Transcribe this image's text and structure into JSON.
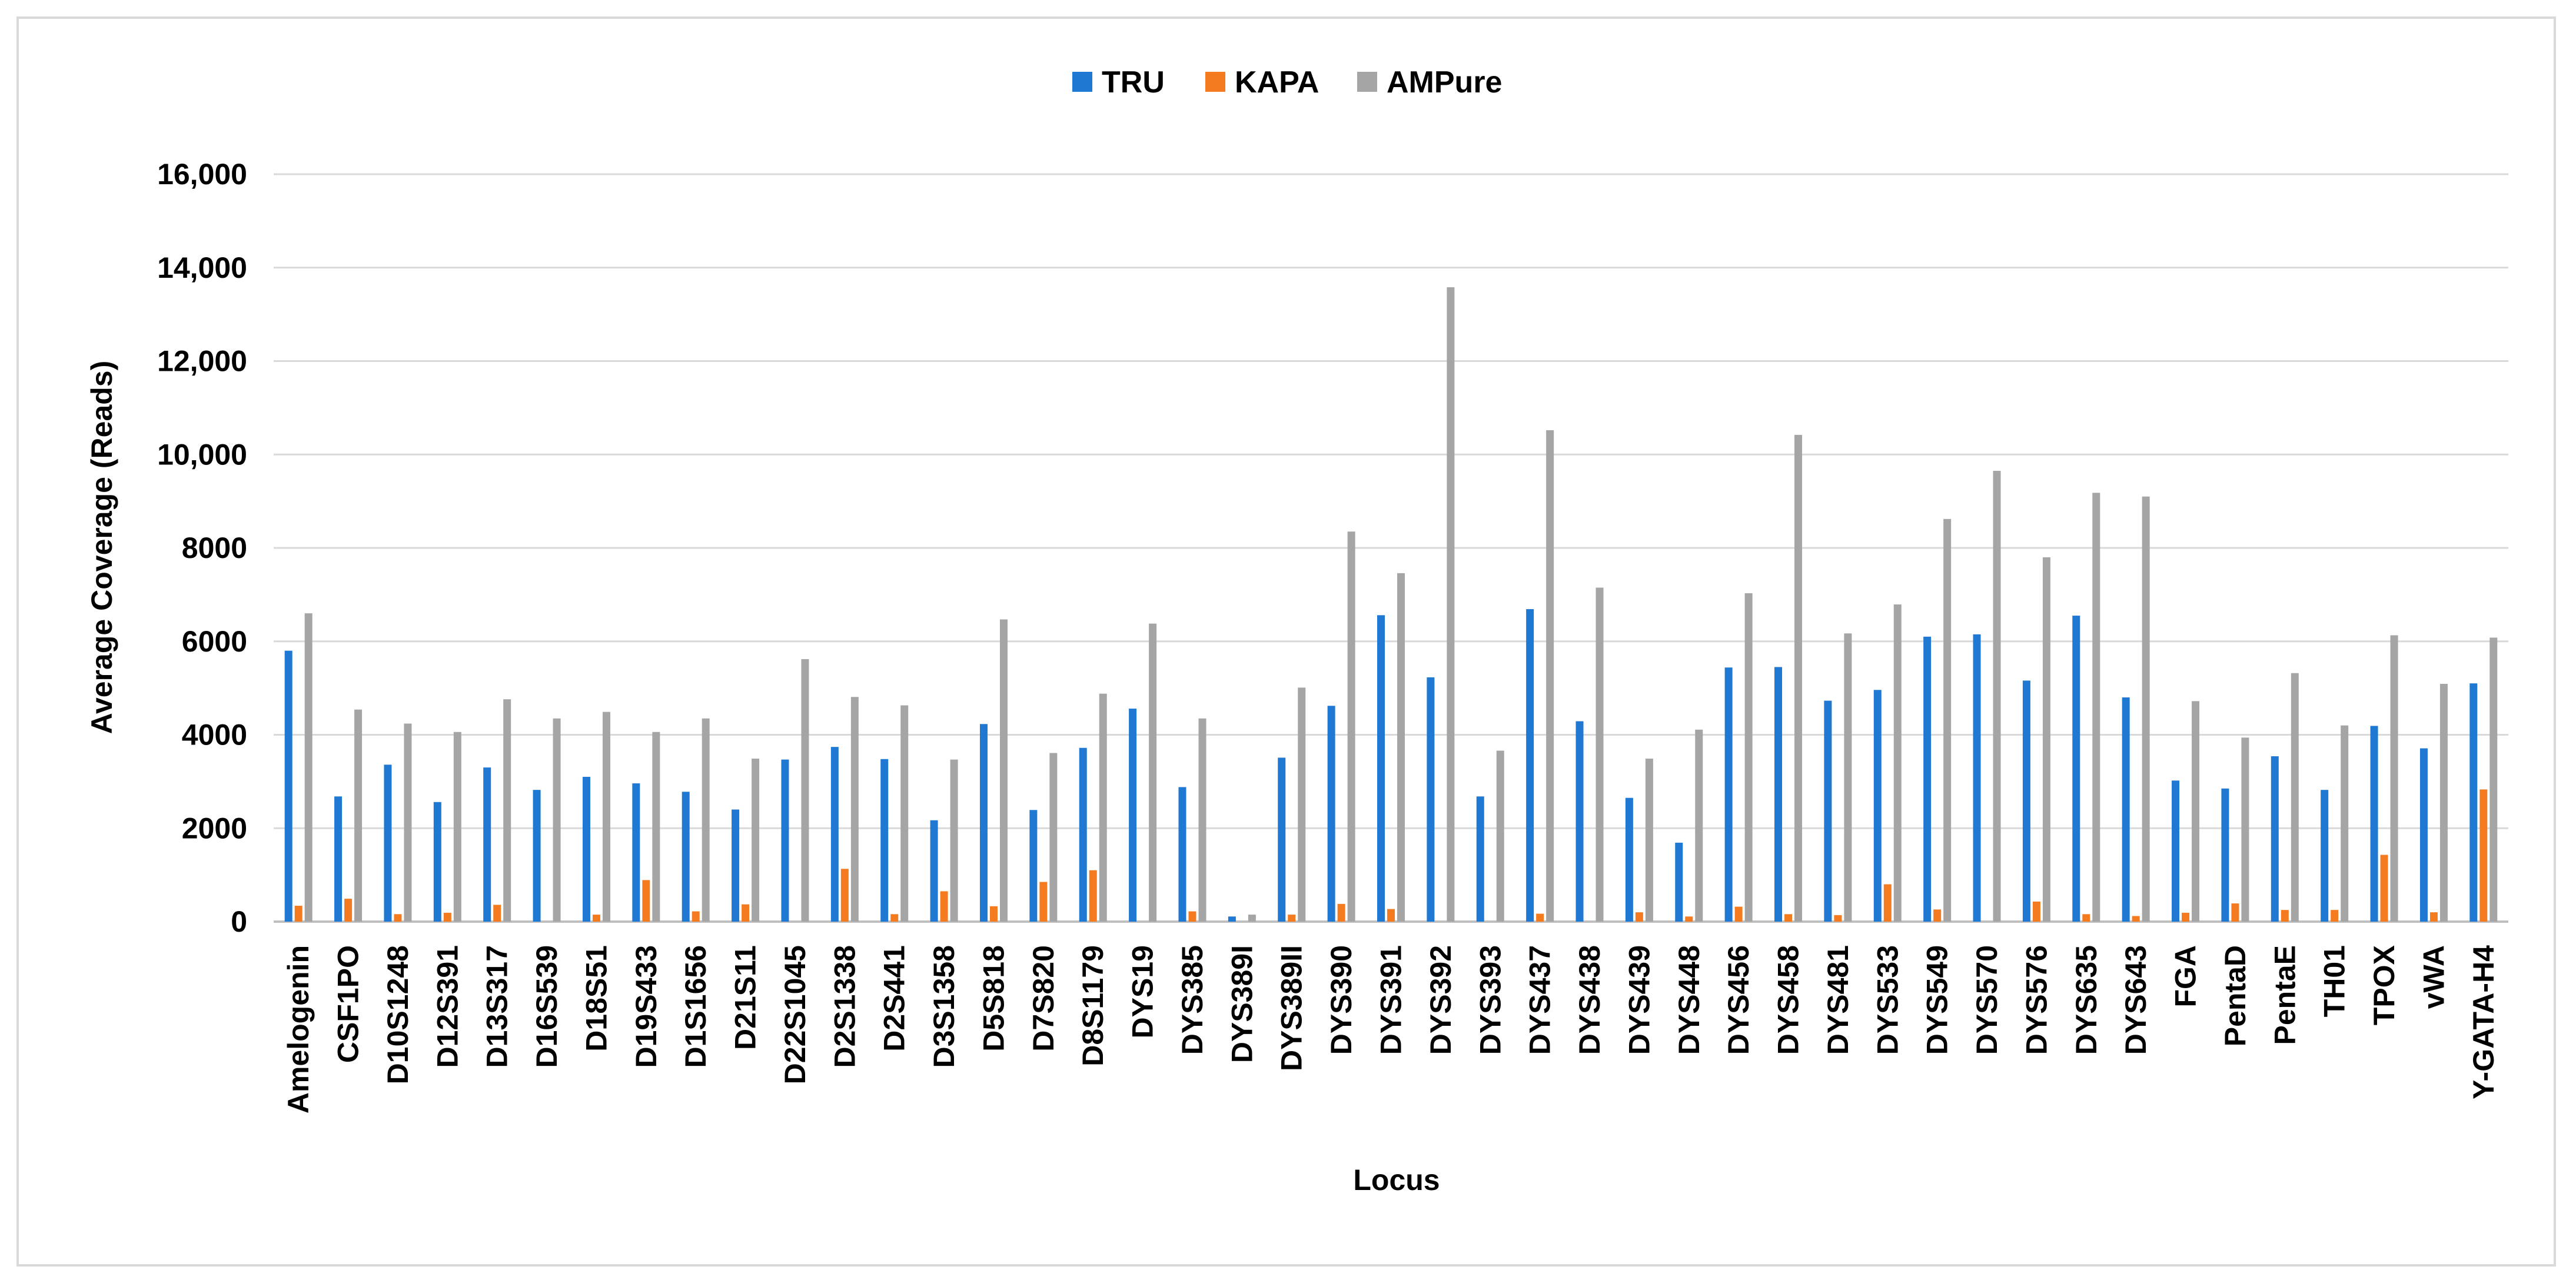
{
  "chart_data": {
    "type": "bar",
    "title": "",
    "xlabel": "Locus",
    "ylabel": "Average Coverage (Reads)",
    "ylim": [
      0,
      16000
    ],
    "yticks": [
      0,
      2000,
      4000,
      6000,
      8000,
      10000,
      12000,
      14000,
      16000
    ],
    "ytick_labels": [
      "0",
      "2000",
      "4000",
      "6000",
      "8000",
      "10,000",
      "12,000",
      "14,000",
      "16,000"
    ],
    "grid": true,
    "legend_position": "top-center",
    "categories": [
      "Amelogenin",
      "CSF1PO",
      "D10S1248",
      "D12S391",
      "D13S317",
      "D16S539",
      "D18S51",
      "D19S433",
      "D1S1656",
      "D21S11",
      "D22S1045",
      "D2S1338",
      "D2S441",
      "D3S1358",
      "D5S818",
      "D7S820",
      "D8S1179",
      "DYS19",
      "DYS385",
      "DYS389I",
      "DYS389II",
      "DYS390",
      "DYS391",
      "DYS392",
      "DYS393",
      "DYS437",
      "DYS438",
      "DYS439",
      "DYS448",
      "DYS456",
      "DYS458",
      "DYS481",
      "DYS533",
      "DYS549",
      "DYS570",
      "DYS576",
      "DYS635",
      "DYS643",
      "FGA",
      "PentaD",
      "PentaE",
      "TH01",
      "TPOX",
      "vWA",
      "Y-GATA-H4"
    ],
    "series": [
      {
        "name": "TRU",
        "color": "#1f78d1",
        "values": [
          5800,
          2680,
          3360,
          2560,
          3300,
          2820,
          3100,
          2960,
          2780,
          2400,
          3470,
          3740,
          3480,
          2170,
          4230,
          2390,
          3720,
          4560,
          2880,
          110,
          3510,
          4620,
          6560,
          5230,
          2680,
          6690,
          4290,
          2650,
          1690,
          5440,
          5450,
          4730,
          4960,
          6100,
          6150,
          5160,
          6550,
          4800,
          3020,
          2850,
          3540,
          2820,
          4190,
          3710,
          5100
        ]
      },
      {
        "name": "KAPA",
        "color": "#f47b20",
        "values": [
          340,
          490,
          160,
          190,
          360,
          0,
          150,
          890,
          220,
          370,
          0,
          1130,
          160,
          650,
          330,
          850,
          1100,
          0,
          220,
          0,
          150,
          380,
          270,
          0,
          0,
          170,
          0,
          200,
          110,
          320,
          160,
          140,
          800,
          260,
          0,
          430,
          160,
          120,
          190,
          390,
          250,
          250,
          1430,
          200,
          2830
        ]
      },
      {
        "name": "AMPure",
        "color": "#a5a5a5",
        "values": [
          6600,
          4540,
          4240,
          4060,
          4760,
          4350,
          4490,
          4060,
          4350,
          3490,
          5620,
          4810,
          4630,
          3470,
          6470,
          3610,
          4880,
          6380,
          4350,
          150,
          5010,
          8350,
          7460,
          13580,
          3660,
          10520,
          7150,
          3490,
          4110,
          7030,
          10420,
          6170,
          6790,
          8620,
          9650,
          7800,
          9180,
          9100,
          4720,
          3940,
          5320,
          4200,
          6130,
          5090,
          6080
        ]
      }
    ]
  }
}
